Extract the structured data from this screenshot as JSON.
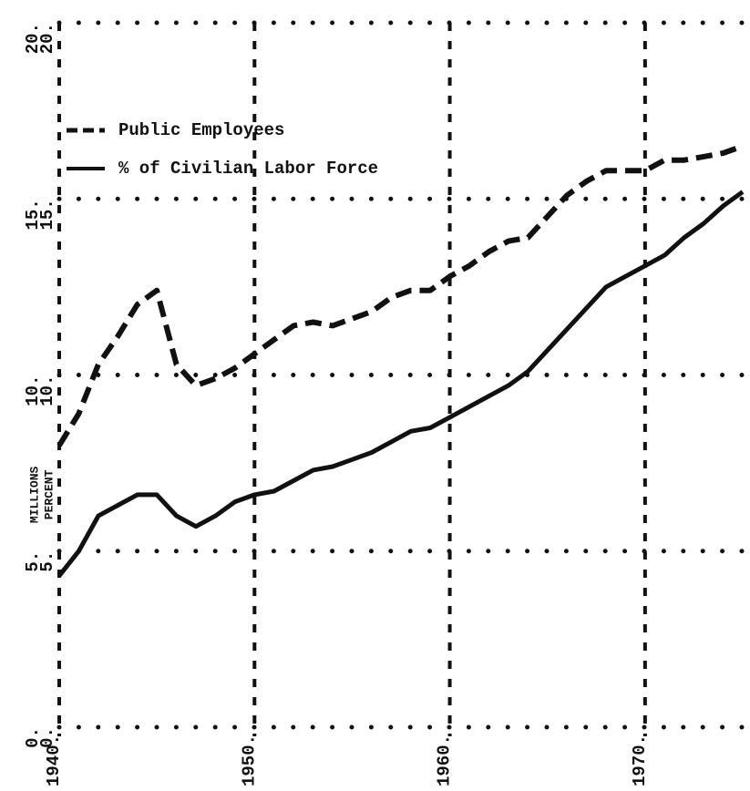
{
  "chart_data": {
    "type": "line",
    "y_label": "MILLIONS",
    "y2_label": "PERCENT",
    "x": [
      1940,
      1941,
      1942,
      1943,
      1944,
      1945,
      1946,
      1947,
      1948,
      1949,
      1950,
      1951,
      1952,
      1953,
      1954,
      1955,
      1956,
      1957,
      1958,
      1959,
      1960,
      1961,
      1962,
      1963,
      1964,
      1965,
      1966,
      1967,
      1968,
      1969,
      1970,
      1971,
      1972,
      1973,
      1974,
      1975
    ],
    "series": [
      {
        "name": "Public Employees",
        "color": "#111111",
        "dash": true,
        "values": [
          8.0,
          8.9,
          10.3,
          11.1,
          12.0,
          12.4,
          10.3,
          9.7,
          9.9,
          10.2,
          10.6,
          11.0,
          11.4,
          11.5,
          11.4,
          11.6,
          11.8,
          12.2,
          12.4,
          12.4,
          12.8,
          13.1,
          13.5,
          13.8,
          13.9,
          14.5,
          15.1,
          15.5,
          15.8,
          15.8,
          15.8,
          16.1,
          16.1,
          16.2,
          16.3,
          16.5
        ]
      },
      {
        "name": "% of Civilian Labor Force",
        "color": "#111111",
        "dash": false,
        "axis": "y2",
        "values": [
          4.3,
          5.0,
          6.0,
          6.3,
          6.6,
          6.6,
          6.0,
          5.7,
          6.0,
          6.4,
          6.6,
          6.7,
          7.0,
          7.3,
          7.4,
          7.6,
          7.8,
          8.1,
          8.4,
          8.5,
          8.8,
          9.1,
          9.4,
          9.7,
          10.1,
          10.7,
          11.3,
          11.9,
          12.5,
          12.8,
          13.1,
          13.4,
          13.9,
          14.3,
          14.8,
          15.2
        ]
      }
    ],
    "xlim": [
      1940,
      1975
    ],
    "xticks": [
      {
        "value": 1940,
        "label": "1940."
      },
      {
        "value": 1950,
        "label": "1950."
      },
      {
        "value": 1960,
        "label": "1960."
      },
      {
        "value": 1970,
        "label": "1970."
      }
    ],
    "ylim": [
      0,
      20
    ],
    "yticks": [
      {
        "value": 0,
        "label": "0."
      },
      {
        "value": 5,
        "label": "5."
      },
      {
        "value": 10,
        "label": "10."
      },
      {
        "value": 15,
        "label": "15."
      },
      {
        "value": 20,
        "label": "20."
      }
    ],
    "y2lim": [
      0,
      20
    ],
    "y2ticks": [
      {
        "value": 0,
        "label": "0."
      },
      {
        "value": 5,
        "label": "5."
      },
      {
        "value": 10,
        "label": "10."
      },
      {
        "value": 15,
        "label": "15."
      },
      {
        "value": 20,
        "label": "20."
      }
    ],
    "grid": true,
    "legend": "upper left"
  }
}
